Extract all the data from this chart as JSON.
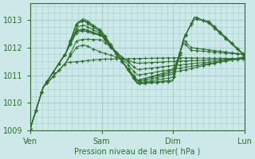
{
  "xlabel": "Pression niveau de la mer( hPa )",
  "bg_color": "#cce8e8",
  "grid_color": "#aacccc",
  "line_color": "#2d6e2d",
  "marker": "+",
  "ylim": [
    1009.0,
    1013.6
  ],
  "yticks": [
    1009,
    1010,
    1011,
    1012,
    1013
  ],
  "day_positions": [
    0,
    1,
    2,
    3
  ],
  "day_labels": [
    "Ven",
    "Sam",
    "Dim",
    "Lun"
  ],
  "series_waypoints": [
    [
      [
        0.0,
        1009.05
      ],
      [
        0.18,
        1010.55
      ],
      [
        0.5,
        1011.45
      ],
      [
        1.0,
        1011.58
      ],
      [
        1.5,
        1011.6
      ],
      [
        2.0,
        1011.63
      ],
      [
        3.0,
        1011.6
      ]
    ],
    [
      [
        0.0,
        1009.05
      ],
      [
        0.18,
        1010.55
      ],
      [
        0.5,
        1011.45
      ],
      [
        0.65,
        1012.02
      ],
      [
        0.75,
        1012.1
      ],
      [
        1.0,
        1011.82
      ],
      [
        1.5,
        1011.43
      ],
      [
        2.0,
        1011.5
      ],
      [
        3.0,
        1011.6
      ]
    ],
    [
      [
        0.0,
        1009.05
      ],
      [
        0.18,
        1010.55
      ],
      [
        0.5,
        1011.45
      ],
      [
        0.65,
        1012.25
      ],
      [
        0.75,
        1012.3
      ],
      [
        1.0,
        1012.28
      ],
      [
        1.5,
        1011.2
      ],
      [
        2.0,
        1011.35
      ],
      [
        3.0,
        1011.6
      ]
    ],
    [
      [
        0.0,
        1009.05
      ],
      [
        0.18,
        1010.55
      ],
      [
        0.5,
        1011.8
      ],
      [
        0.65,
        1012.55
      ],
      [
        0.75,
        1012.6
      ],
      [
        1.0,
        1012.42
      ],
      [
        1.5,
        1011.0
      ],
      [
        2.0,
        1011.22
      ],
      [
        3.0,
        1011.62
      ]
    ],
    [
      [
        0.0,
        1009.05
      ],
      [
        0.18,
        1010.55
      ],
      [
        0.5,
        1011.8
      ],
      [
        0.65,
        1012.6
      ],
      [
        0.75,
        1012.65
      ],
      [
        1.0,
        1012.43
      ],
      [
        1.5,
        1010.82
      ],
      [
        2.0,
        1011.1
      ],
      [
        3.0,
        1011.67
      ]
    ],
    [
      [
        0.0,
        1009.05
      ],
      [
        0.18,
        1010.55
      ],
      [
        0.5,
        1011.8
      ],
      [
        0.65,
        1012.62
      ],
      [
        0.75,
        1012.68
      ],
      [
        1.0,
        1012.44
      ],
      [
        1.5,
        1010.8
      ],
      [
        2.0,
        1011.18
      ],
      [
        2.15,
        1012.18
      ],
      [
        2.25,
        1011.9
      ],
      [
        3.0,
        1011.75
      ]
    ],
    [
      [
        0.0,
        1009.05
      ],
      [
        0.18,
        1010.55
      ],
      [
        0.5,
        1011.8
      ],
      [
        0.65,
        1012.72
      ],
      [
        0.75,
        1012.82
      ],
      [
        1.0,
        1012.48
      ],
      [
        1.5,
        1010.76
      ],
      [
        2.0,
        1011.04
      ],
      [
        2.15,
        1012.28
      ],
      [
        2.25,
        1012.0
      ],
      [
        3.0,
        1011.75
      ]
    ],
    [
      [
        0.0,
        1009.05
      ],
      [
        0.18,
        1010.55
      ],
      [
        0.5,
        1011.8
      ],
      [
        0.65,
        1012.85
      ],
      [
        0.75,
        1012.97
      ],
      [
        1.0,
        1012.52
      ],
      [
        1.5,
        1010.72
      ],
      [
        2.0,
        1010.92
      ],
      [
        2.15,
        1012.35
      ],
      [
        2.3,
        1013.03
      ],
      [
        2.5,
        1012.95
      ],
      [
        3.0,
        1011.73
      ]
    ],
    [
      [
        0.0,
        1009.05
      ],
      [
        0.18,
        1010.55
      ],
      [
        0.5,
        1011.8
      ],
      [
        0.65,
        1012.88
      ],
      [
        0.75,
        1013.0
      ],
      [
        1.0,
        1012.58
      ],
      [
        1.5,
        1010.7
      ],
      [
        2.0,
        1010.82
      ],
      [
        2.15,
        1012.35
      ],
      [
        2.3,
        1013.1
      ],
      [
        2.5,
        1012.92
      ],
      [
        3.0,
        1011.72
      ]
    ],
    [
      [
        0.0,
        1009.05
      ],
      [
        0.18,
        1010.55
      ],
      [
        0.5,
        1011.8
      ],
      [
        0.65,
        1012.88
      ],
      [
        0.75,
        1013.05
      ],
      [
        1.0,
        1012.6
      ],
      [
        1.5,
        1010.68
      ],
      [
        2.0,
        1010.78
      ],
      [
        2.15,
        1012.3
      ],
      [
        2.3,
        1013.12
      ],
      [
        2.5,
        1012.88
      ],
      [
        3.0,
        1011.7
      ]
    ]
  ]
}
